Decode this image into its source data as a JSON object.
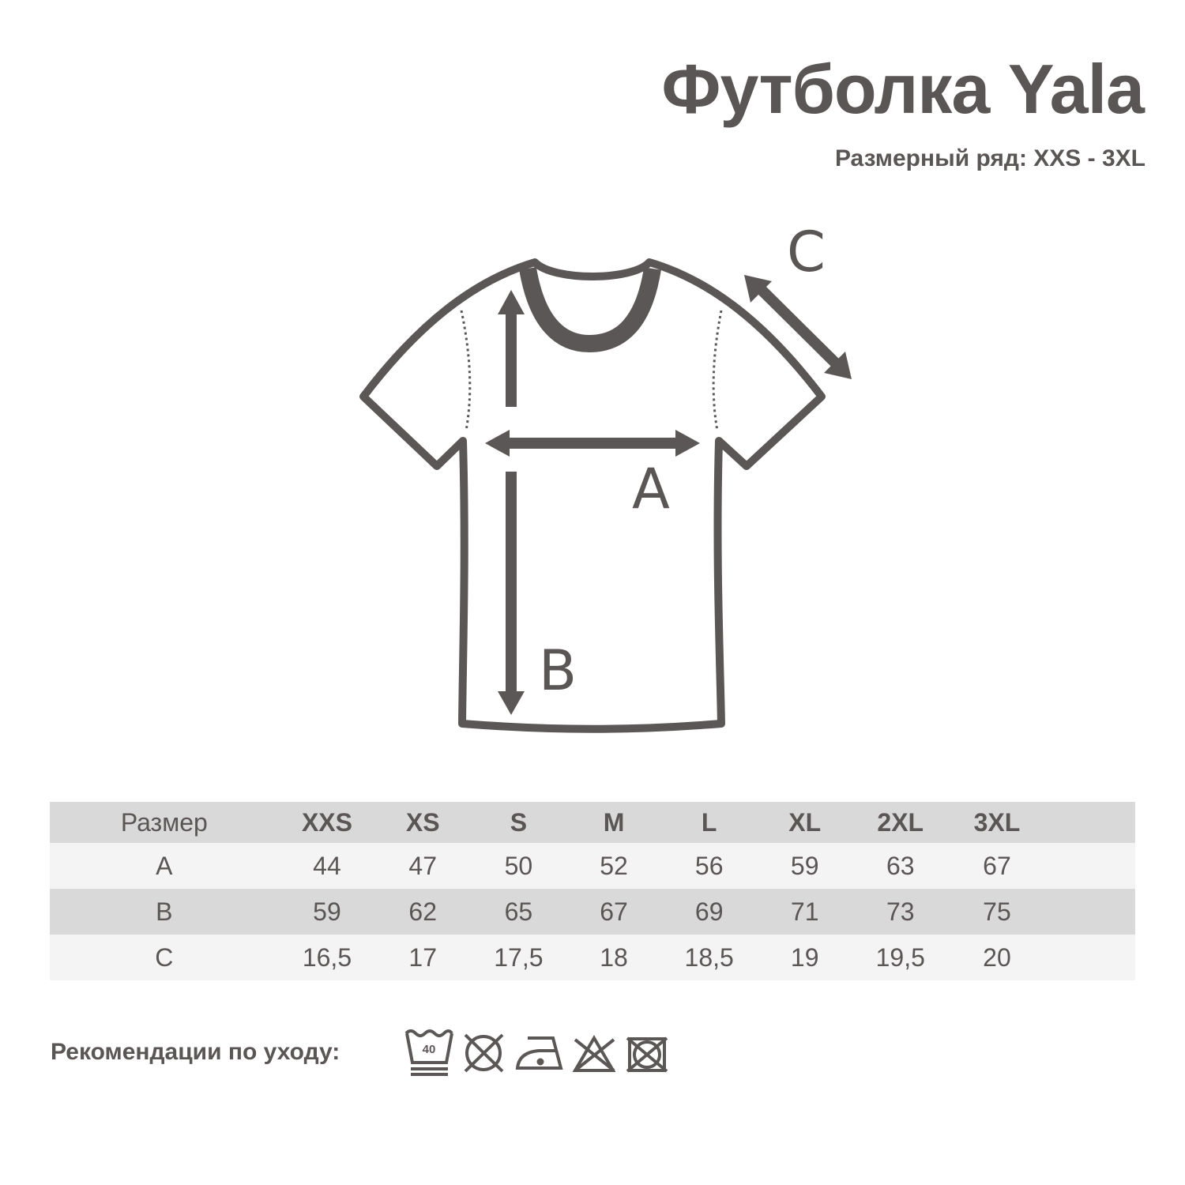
{
  "title": "Футболка Yala",
  "subtitle": "Размерный ряд: XXS - 3XL",
  "diagram": {
    "labels": {
      "a": "A",
      "b": "B",
      "c": "C"
    },
    "color": "#5b5756"
  },
  "table": {
    "header": [
      "Размер",
      "XXS",
      "XS",
      "S",
      "M",
      "L",
      "XL",
      "2XL",
      "3XL"
    ],
    "rows": [
      [
        "A",
        "44",
        "47",
        "50",
        "52",
        "56",
        "59",
        "63",
        "67"
      ],
      [
        "B",
        "59",
        "62",
        "65",
        "67",
        "69",
        "71",
        "73",
        "75"
      ],
      [
        "C",
        "16,5",
        "17",
        "17,5",
        "18",
        "18,5",
        "19",
        "19,5",
        "20"
      ]
    ]
  },
  "care": {
    "label": "Рекомендации по уходу:",
    "icons": [
      "wash-40-gentle-icon",
      "no-tumble-dry-icon",
      "iron-low-icon",
      "no-bleach-icon",
      "no-dry-clean-box-icon"
    ],
    "wash_temp": "40"
  }
}
